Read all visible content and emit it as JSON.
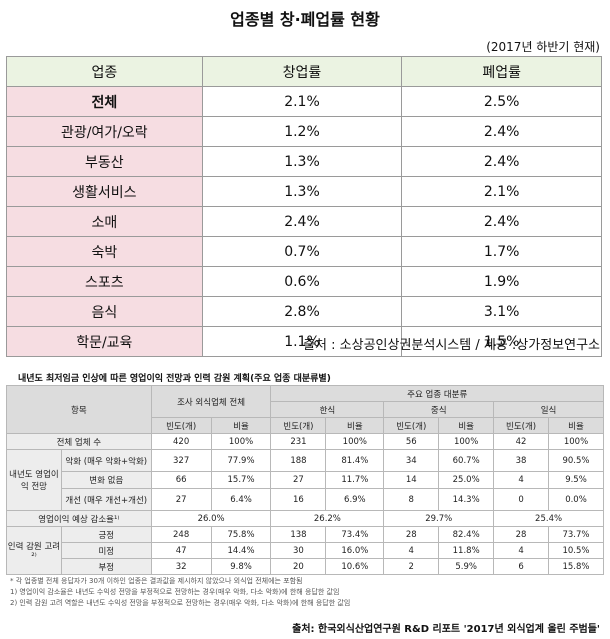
{
  "title": "업종별 창·폐업률 현황",
  "subnote": "(2017년 하반기 현재)",
  "table1": {
    "headers": [
      "업종",
      "창업률",
      "폐업률"
    ],
    "rows": [
      {
        "category": "전체",
        "start": "2.1%",
        "close": "2.5%",
        "bold": true
      },
      {
        "category": "관광/여가/오락",
        "start": "1.2%",
        "close": "2.4%"
      },
      {
        "category": "부동산",
        "start": "1.3%",
        "close": "2.4%"
      },
      {
        "category": "생활서비스",
        "start": "1.3%",
        "close": "2.1%"
      },
      {
        "category": "소매",
        "start": "2.4%",
        "close": "2.4%"
      },
      {
        "category": "숙박",
        "start": "0.7%",
        "close": "1.7%"
      },
      {
        "category": "스포츠",
        "start": "0.6%",
        "close": "1.9%"
      },
      {
        "category": "음식",
        "start": "2.8%",
        "close": "3.1%"
      },
      {
        "category": "학문/교육",
        "start": "1.1%",
        "close": "1.5%"
      }
    ]
  },
  "source1": "출처 : 소상공인상권분석시스템 / 제공 :상가정보연구소",
  "table2": {
    "title": "내년도 최저임금 인상에 따른 영업이익 전망과 인력 감원 계획(주요 업종 대분류별)",
    "h_item": "항목",
    "h_total": "조사 외식업체 전체",
    "h_major": "주요 업종 대분류",
    "h_korean": "한식",
    "h_chinese": "중식",
    "h_japanese": "일식",
    "h_count": "빈도(개)",
    "h_ratio": "비율",
    "total_row": {
      "label": "전체 업체 수",
      "vals": [
        "420",
        "100%",
        "231",
        "100%",
        "56",
        "100%",
        "42",
        "100%"
      ]
    },
    "outlook_label": "내년도 영업이익 전망",
    "outlook_rows": [
      {
        "label": "악화 (매우 악화+악화)",
        "vals": [
          "327",
          "77.9%",
          "188",
          "81.4%",
          "34",
          "60.7%",
          "38",
          "90.5%"
        ]
      },
      {
        "label": "변화 없음",
        "vals": [
          "66",
          "15.7%",
          "27",
          "11.7%",
          "14",
          "25.0%",
          "4",
          "9.5%"
        ]
      },
      {
        "label": "개선 (매우 개선+개선)",
        "vals": [
          "27",
          "6.4%",
          "16",
          "6.9%",
          "8",
          "14.3%",
          "0",
          "0.0%"
        ]
      }
    ],
    "decrease_row": {
      "label": "영업이익 예상 감소율¹⁾",
      "vals": [
        "26.0%",
        "26.2%",
        "29.7%",
        "25.4%"
      ]
    },
    "staff_label": "인력 감원 고려²⁾",
    "staff_rows": [
      {
        "label": "긍정",
        "vals": [
          "248",
          "75.8%",
          "138",
          "73.4%",
          "28",
          "82.4%",
          "28",
          "73.7%"
        ]
      },
      {
        "label": "미정",
        "vals": [
          "47",
          "14.4%",
          "30",
          "16.0%",
          "4",
          "11.8%",
          "4",
          "10.5%"
        ]
      },
      {
        "label": "부정",
        "vals": [
          "32",
          "9.8%",
          "20",
          "10.6%",
          "2",
          "5.9%",
          "6",
          "15.8%"
        ]
      }
    ]
  },
  "notes": [
    "* 각 업종별 전체 응답자가 30개 이하인 업종은 결과값을 제시하지 않았으나 외식업 전체에는 포함됨",
    "1) 영업이익 감소율은 내년도 수익성 전망을 부정적으로 전망하는 경우(매우 악화, 다소 악화)에 한해 응답한 값임",
    "2) 인력 감원 고려 역할은 내년도 수익성 전망을 부정적으로 전망하는 경우(매우 악화, 다소 악화)에 한해 응답한 값임"
  ],
  "source2": "출처: 한국외식산업연구원 R&D 리포트 '2017년 외식업계 올린 주범들'"
}
